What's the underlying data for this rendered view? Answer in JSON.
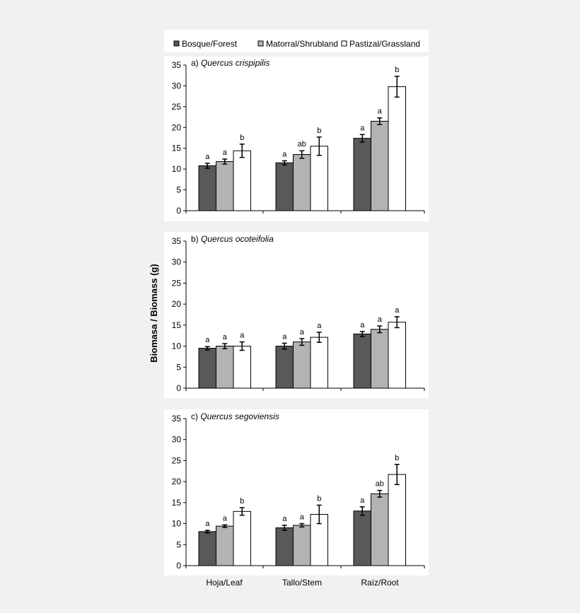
{
  "chart_data": {
    "type": "bar",
    "ylabel": "Biomasa / Biomass (g)",
    "categories": [
      "Hoja/Leaf",
      "Tallo/Stem",
      "Raíz/Root"
    ],
    "legend": [
      {
        "name": "Bosque/Forest",
        "color": "#595959"
      },
      {
        "name": "Matorral/Shrubland",
        "color": "#b3b3b3"
      },
      {
        "name": "Pastizal/Grassland",
        "color": "#ffffff"
      }
    ],
    "ylim": [
      0,
      35
    ],
    "yticks": [
      "0",
      "5",
      "10",
      "15",
      "20",
      "25",
      "30",
      "35"
    ],
    "panels": [
      {
        "title_prefix": "a)",
        "species": "Quercus crispipilis",
        "series": [
          {
            "name": "Bosque/Forest",
            "values": [
              10.8,
              11.5,
              17.4
            ],
            "errors": [
              0.6,
              0.5,
              0.9
            ],
            "letters": [
              "a",
              "a",
              "a"
            ]
          },
          {
            "name": "Matorral/Shrubland",
            "values": [
              11.8,
              13.5,
              21.5
            ],
            "errors": [
              0.6,
              0.9,
              0.8
            ],
            "letters": [
              "a",
              "ab",
              "a"
            ]
          },
          {
            "name": "Pastizal/Grassland",
            "values": [
              14.4,
              15.5,
              29.8
            ],
            "errors": [
              1.6,
              2.2,
              2.5
            ],
            "letters": [
              "b",
              "b",
              "b"
            ]
          }
        ]
      },
      {
        "title_prefix": "b)",
        "species": "Quercus ocoteifolia",
        "series": [
          {
            "name": "Bosque/Forest",
            "values": [
              9.5,
              10.0,
              12.9
            ],
            "errors": [
              0.4,
              0.7,
              0.6
            ],
            "letters": [
              "a",
              "a",
              "a"
            ]
          },
          {
            "name": "Matorral/Shrubland",
            "values": [
              10.0,
              11.0,
              14.0
            ],
            "errors": [
              0.6,
              0.8,
              0.8
            ],
            "letters": [
              "a",
              "a",
              "a"
            ]
          },
          {
            "name": "Pastizal/Grassland",
            "values": [
              10.0,
              12.1,
              15.7
            ],
            "errors": [
              1.0,
              1.2,
              1.3
            ],
            "letters": [
              "a",
              "a",
              "a"
            ]
          }
        ]
      },
      {
        "title_prefix": "c)",
        "species": "Quercus segoviensis",
        "series": [
          {
            "name": "Bosque/Forest",
            "values": [
              8.1,
              9.0,
              13.0
            ],
            "errors": [
              0.3,
              0.6,
              1.0
            ],
            "letters": [
              "a",
              "a",
              "a"
            ]
          },
          {
            "name": "Matorral/Shrubland",
            "values": [
              9.4,
              9.6,
              17.1
            ],
            "errors": [
              0.3,
              0.4,
              0.8
            ],
            "letters": [
              "a",
              "a",
              "ab"
            ]
          },
          {
            "name": "Pastizal/Grassland",
            "values": [
              12.9,
              12.2,
              21.7
            ],
            "errors": [
              0.9,
              2.2,
              2.4
            ],
            "letters": [
              "b",
              "b",
              "b"
            ]
          }
        ]
      }
    ]
  }
}
